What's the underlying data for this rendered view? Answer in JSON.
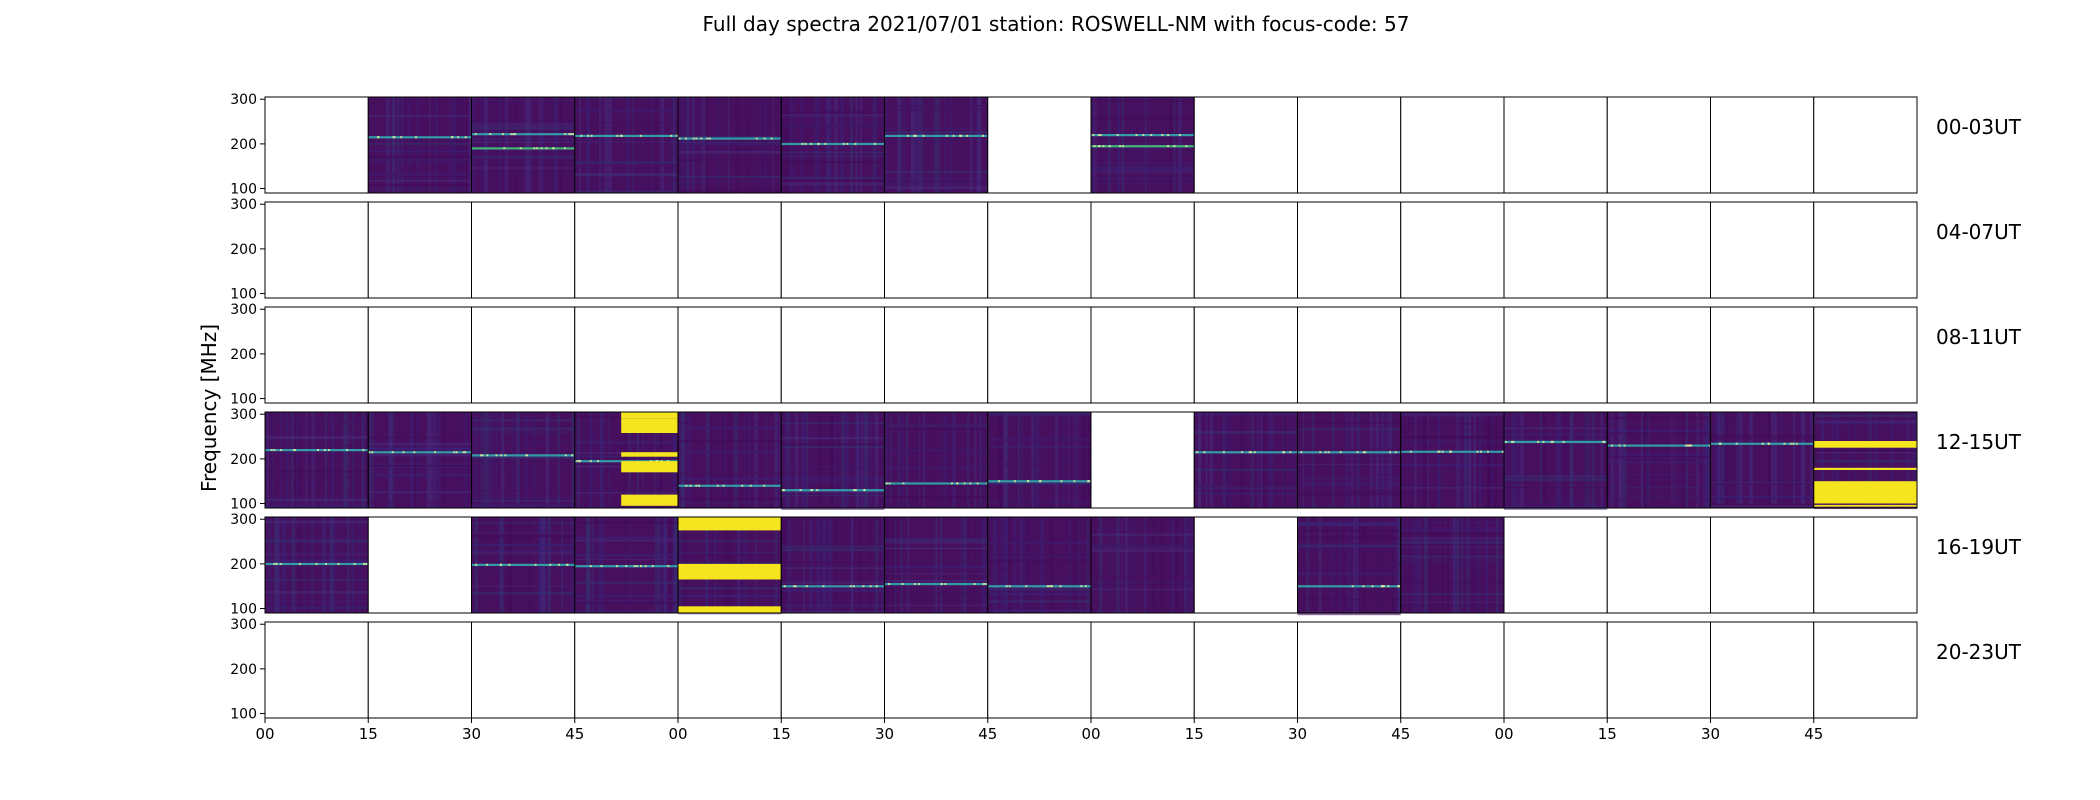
{
  "figure": {
    "title": "Full day spectra 2021/07/01 station: ROSWELL-NM with focus-code: 57",
    "ylabel": "Frequency [MHz]"
  },
  "colors": {
    "background_low": "#46105f",
    "background_mid": "#3b1f74",
    "band_cyan": "#2fb4b0",
    "band_green": "#3fd07a",
    "saturated": "#f4e51e",
    "empty_cell": "#ffffff"
  },
  "chart_data": {
    "type": "heatmap",
    "title": "Full day spectra 2021/07/01 station: ROSWELL-NM with focus-code: 57",
    "ylabel": "Frequency [MHz]",
    "ylim": [
      90,
      305
    ],
    "y_ticks": [
      "300",
      "200",
      "100"
    ],
    "x_ticks": [
      "00",
      "15",
      "30",
      "45",
      "00",
      "15",
      "30",
      "45",
      "00",
      "15",
      "30",
      "45",
      "00",
      "15",
      "30",
      "45"
    ],
    "columns_per_row": 16,
    "row_labels": [
      "00-03UT",
      "04-07UT",
      "08-11UT",
      "12-15UT",
      "16-19UT",
      "20-23UT"
    ],
    "cell_state_legend": {
      "0": "no data (blank)",
      "1": "spectrum recorded",
      "2": "saturated / RFI-dominated"
    },
    "cells": [
      [
        0,
        1,
        1,
        1,
        1,
        1,
        1,
        0,
        1,
        0,
        0,
        0,
        0,
        0,
        0,
        0
      ],
      [
        0,
        0,
        0,
        0,
        0,
        0,
        0,
        0,
        0,
        0,
        0,
        0,
        0,
        0,
        0,
        0
      ],
      [
        0,
        0,
        0,
        0,
        0,
        0,
        0,
        0,
        0,
        0,
        0,
        0,
        0,
        0,
        0,
        0
      ],
      [
        1,
        1,
        1,
        2,
        1,
        1,
        1,
        1,
        0,
        1,
        1,
        1,
        1,
        1,
        1,
        2
      ],
      [
        1,
        0,
        1,
        1,
        2,
        1,
        1,
        1,
        1,
        0,
        1,
        1,
        0,
        0,
        0,
        0
      ],
      [
        0,
        0,
        0,
        0,
        0,
        0,
        0,
        0,
        0,
        0,
        0,
        0,
        0,
        0,
        0,
        0
      ]
    ],
    "notable_bands_mhz": [
      [
        [],
        [
          215
        ],
        [
          222,
          190
        ],
        [
          218
        ],
        [
          212
        ],
        [
          200
        ],
        [
          218
        ],
        [],
        [
          220,
          195
        ],
        [],
        [],
        [],
        [],
        [],
        [],
        []
      ],
      [
        [],
        [],
        [],
        [],
        [],
        [],
        [],
        [],
        [],
        [],
        [],
        [],
        [],
        [],
        [],
        []
      ],
      [
        [],
        [],
        [],
        [],
        [],
        [],
        [],
        [],
        [],
        [],
        [],
        [],
        [],
        [],
        [],
        []
      ],
      [
        [
          220
        ],
        [
          215
        ],
        [
          208
        ],
        [
          195
        ],
        [
          140
        ],
        [
          130
        ],
        [
          145
        ],
        [
          150
        ],
        [],
        [
          215
        ],
        [
          215
        ],
        [
          216
        ],
        [
          238
        ],
        [
          230
        ],
        [
          234
        ],
        []
      ],
      [
        [
          200
        ],
        [],
        [
          198
        ],
        [
          195
        ],
        [],
        [
          150
        ],
        [
          155
        ],
        [
          150
        ],
        [],
        [],
        [
          150
        ],
        [],
        [],
        [],
        [],
        []
      ],
      [
        [],
        [],
        [],
        [],
        [],
        [],
        [],
        [],
        [],
        [],
        [],
        [],
        [],
        [],
        [],
        []
      ]
    ],
    "saturated_bands_mhz": [
      [],
      [],
      [],
      [
        {
          "col": 3,
          "bands": [
            [
              290,
              305
            ],
            [
              258,
              290
            ],
            [
              205,
              215
            ],
            [
              170,
              195
            ],
            [
              95,
              120
            ]
          ]
        },
        {
          "col": 15,
          "bands": [
            [
              225,
              240
            ],
            [
              175,
              180
            ],
            [
              100,
              150
            ],
            [
              93,
              97
            ]
          ]
        }
      ],
      [
        {
          "col": 4,
          "bands": [
            [
              275,
              305
            ],
            [
              165,
              200
            ],
            [
              90,
              105
            ]
          ]
        }
      ],
      []
    ]
  }
}
